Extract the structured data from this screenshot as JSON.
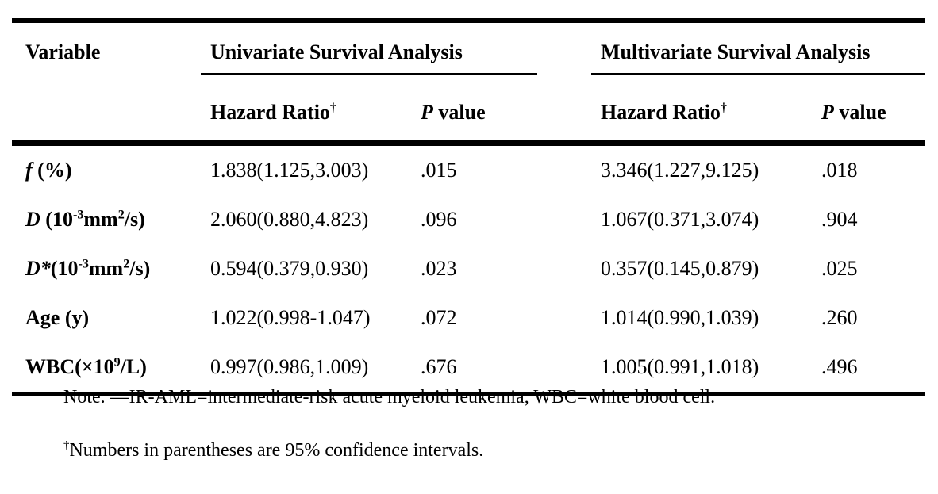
{
  "colors": {
    "background": "#ffffff",
    "text": "#000000",
    "rule": "#000000"
  },
  "table": {
    "header": {
      "variable": "Variable",
      "univariate": "Univariate Survival Analysis",
      "multivariate": "Multivariate Survival Analysis",
      "hazard_ratio": "Hazard Ratio",
      "dagger": "†",
      "p_italic": "P",
      "p_rest": " value"
    },
    "rows": [
      {
        "variable": [
          {
            "text": "f",
            "style": "italic"
          },
          {
            "text": " (%)",
            "style": "normal"
          }
        ],
        "uni_hr": "1.838(1.125,3.003)",
        "uni_p": ".015",
        "multi_hr": "3.346(1.227,9.125)",
        "multi_p": ".018"
      },
      {
        "variable": [
          {
            "text": "D",
            "style": "italic"
          },
          {
            "text": " (10",
            "style": "normal"
          },
          {
            "text": "-3",
            "style": "sup"
          },
          {
            "text": "mm",
            "style": "normal"
          },
          {
            "text": "2",
            "style": "sup"
          },
          {
            "text": "/s)",
            "style": "normal"
          }
        ],
        "uni_hr": "2.060(0.880,4.823)",
        "uni_p": ".096",
        "multi_hr": "1.067(0.371,3.074)",
        "multi_p": ".904"
      },
      {
        "variable": [
          {
            "text": "D",
            "style": "italic"
          },
          {
            "text": "*",
            "style": "italic"
          },
          {
            "text": "(10",
            "style": "normal"
          },
          {
            "text": "-3",
            "style": "sup"
          },
          {
            "text": "mm",
            "style": "normal"
          },
          {
            "text": "2",
            "style": "sup"
          },
          {
            "text": "/s)",
            "style": "normal"
          }
        ],
        "uni_hr": "0.594(0.379,0.930)",
        "uni_p": ".023",
        "multi_hr": "0.357(0.145,0.879)",
        "multi_p": ".025"
      },
      {
        "variable": [
          {
            "text": "Age (y)",
            "style": "normal"
          }
        ],
        "uni_hr": "1.022(0.998-1.047)",
        "uni_p": ".072",
        "multi_hr": "1.014(0.990,1.039)",
        "multi_p": ".260"
      },
      {
        "variable": [
          {
            "text": "WBC(×10",
            "style": "normal"
          },
          {
            "text": "9",
            "style": "sup"
          },
          {
            "text": "/L)",
            "style": "normal"
          }
        ],
        "uni_hr": "0.997(0.986,1.009)",
        "uni_p": ".676",
        "multi_hr": "1.005(0.991,1.018)",
        "multi_p": ".496"
      }
    ]
  },
  "notes": {
    "note": "Note. —IR-AML=intermediate-risk acute myeloid leukemia, WBC=white blood cell.",
    "footnote_dagger": "†",
    "footnote_text": "Numbers in parentheses are 95% confidence intervals."
  }
}
